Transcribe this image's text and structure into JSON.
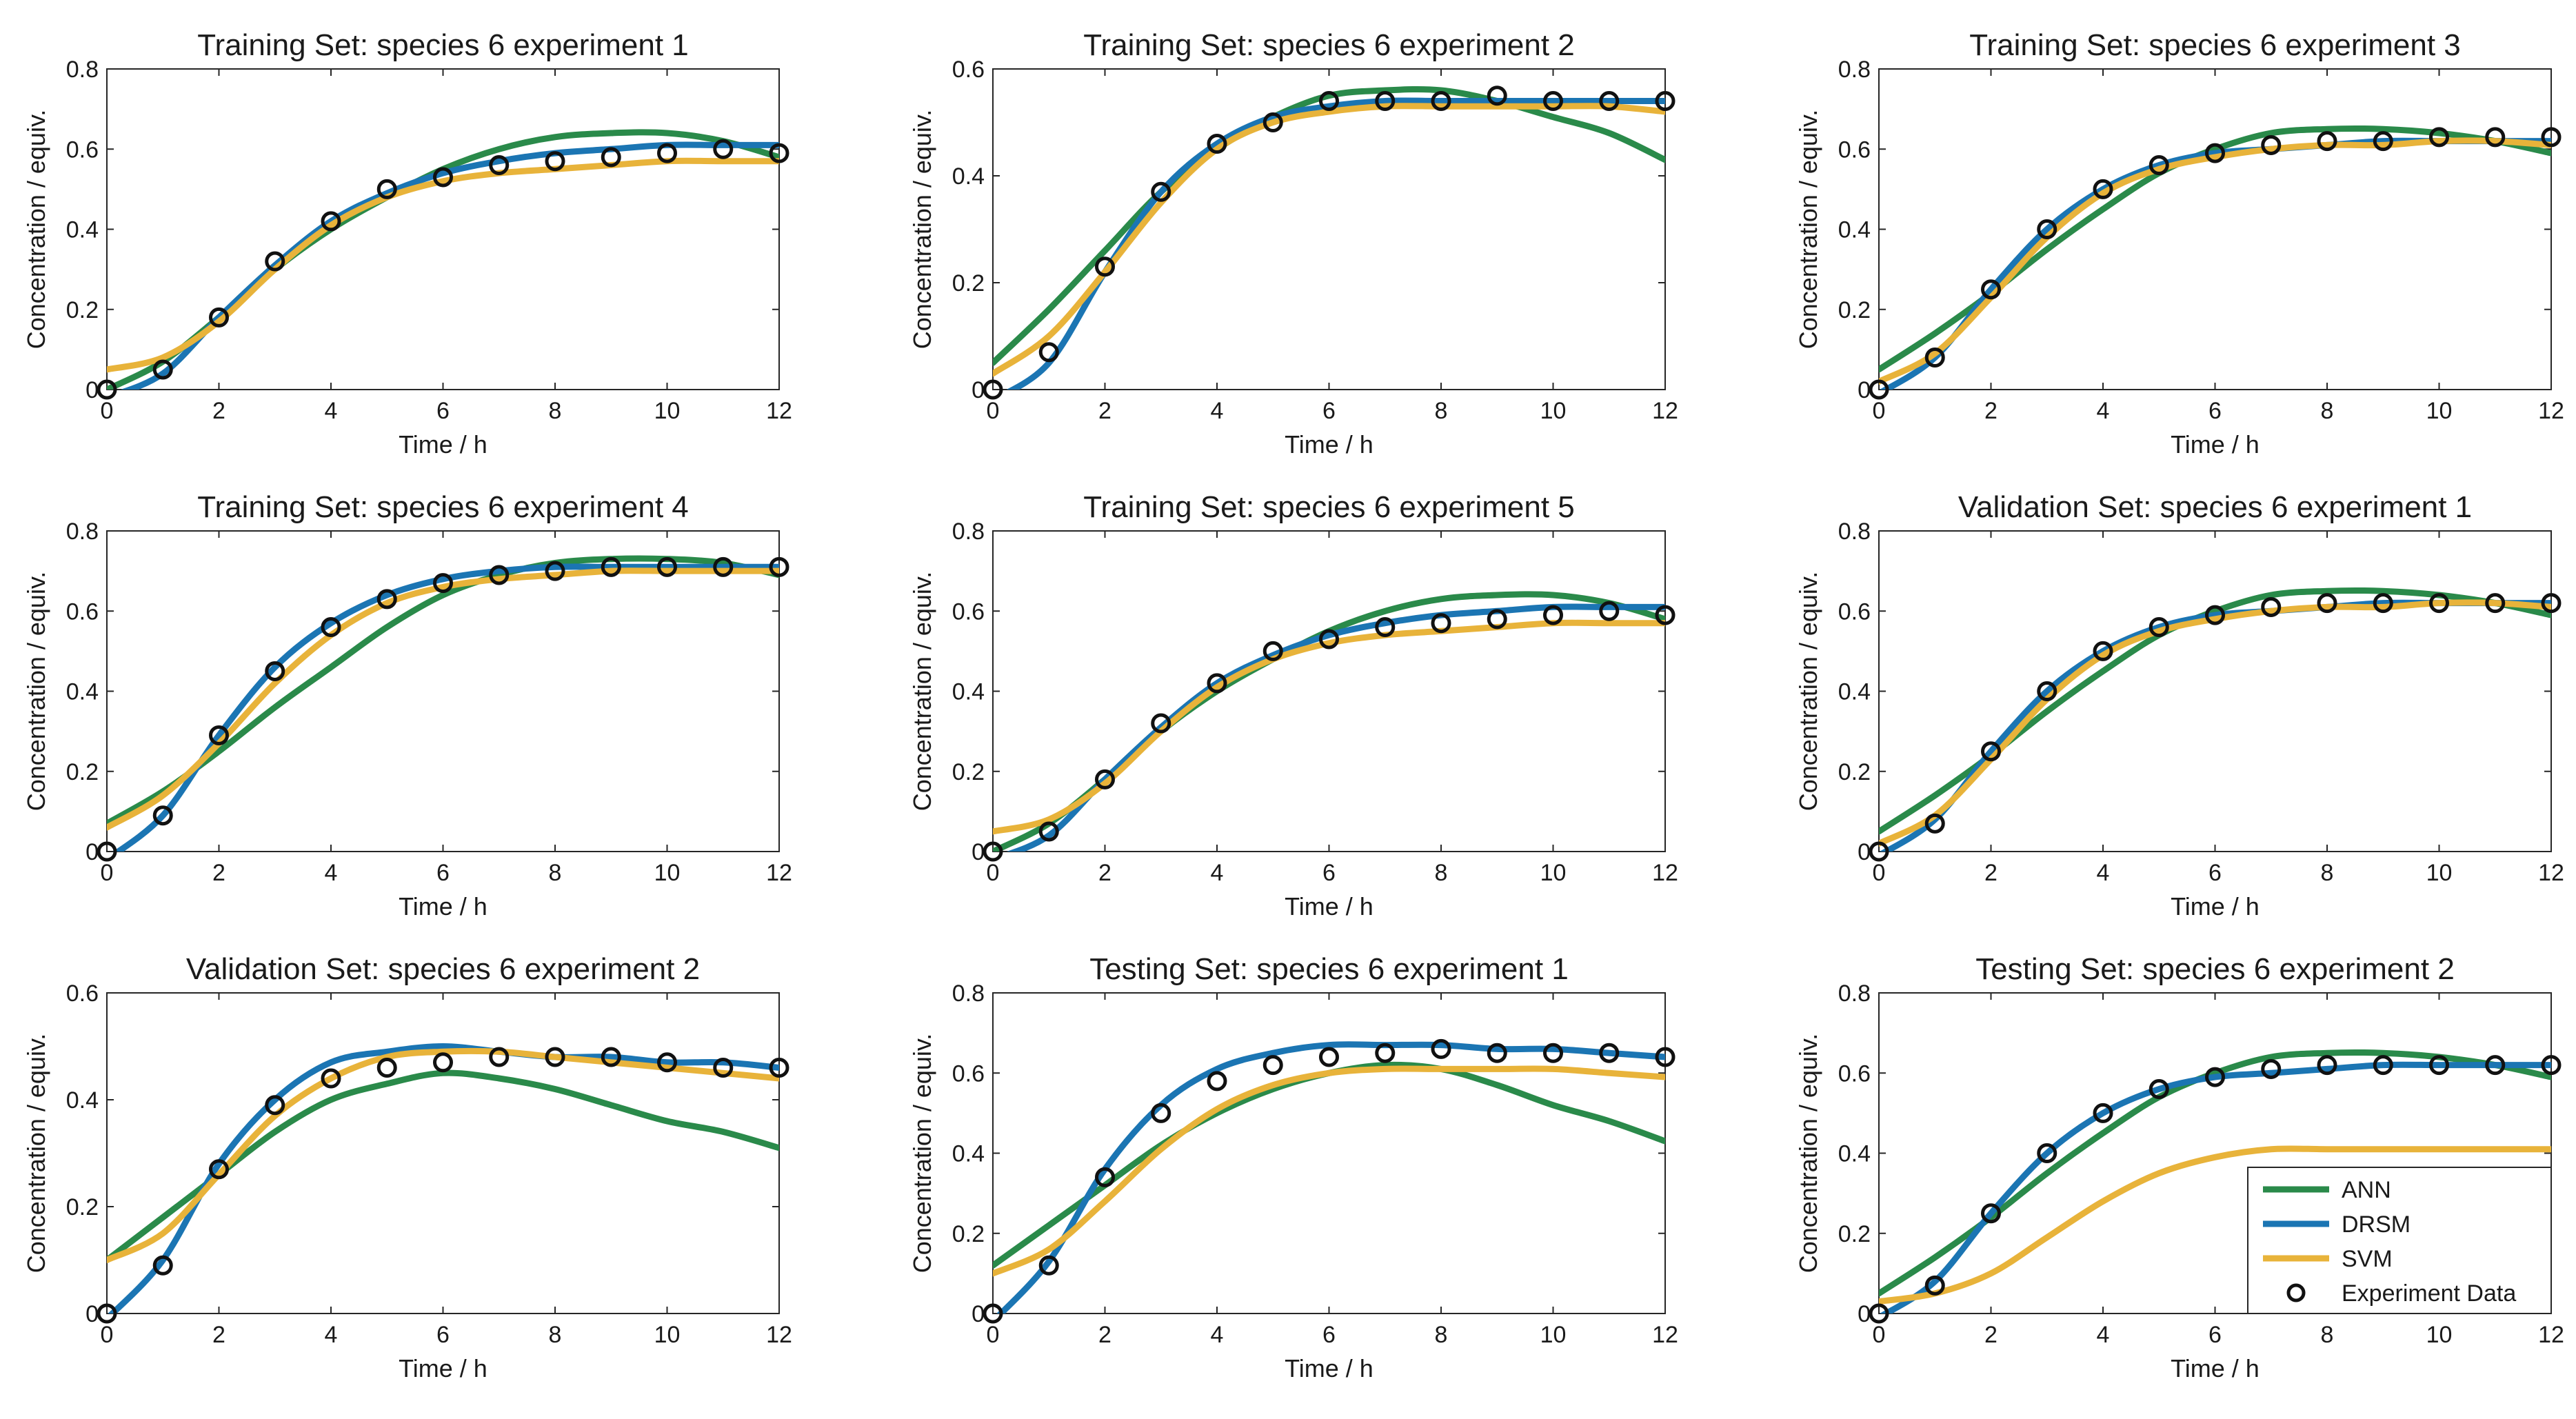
{
  "colors": {
    "ANN": "#2a8a4a",
    "DRSM": "#1b75b3",
    "SVM": "#e8b33a",
    "marker": "#111111"
  },
  "legend": [
    {
      "key": "ANN",
      "label": "ANN"
    },
    {
      "key": "DRSM",
      "label": "DRSM"
    },
    {
      "key": "SVM",
      "label": "SVM"
    },
    {
      "key": "exp",
      "label": "Experiment Data"
    }
  ],
  "chart_data": [
    {
      "type": "line",
      "title": "Training Set: species 6 experiment 1",
      "xlabel": "Time / h",
      "ylabel": "Concentration / equiv.",
      "xlim": [
        0,
        12
      ],
      "ylim": [
        0,
        0.8
      ],
      "xticks": [
        "0",
        "2",
        "4",
        "6",
        "8",
        "10",
        "12"
      ],
      "yticks": [
        "0",
        "0.2",
        "0.4",
        "0.6",
        "0.8"
      ],
      "x": [
        0,
        1,
        2,
        3,
        4,
        5,
        6,
        7,
        8,
        9,
        10,
        11,
        12
      ],
      "series": [
        {
          "name": "ANN",
          "values": [
            0.0,
            0.07,
            0.18,
            0.3,
            0.4,
            0.48,
            0.55,
            0.6,
            0.63,
            0.64,
            0.64,
            0.62,
            0.58
          ]
        },
        {
          "name": "DRSM",
          "values": [
            -0.02,
            0.04,
            0.18,
            0.31,
            0.42,
            0.49,
            0.54,
            0.57,
            0.59,
            0.6,
            0.61,
            0.61,
            0.61
          ]
        },
        {
          "name": "SVM",
          "values": [
            0.05,
            0.08,
            0.17,
            0.3,
            0.41,
            0.48,
            0.52,
            0.54,
            0.55,
            0.56,
            0.57,
            0.57,
            0.57
          ]
        },
        {
          "name": "Experiment Data",
          "marker": "circle",
          "values": [
            0.0,
            0.05,
            0.18,
            0.32,
            0.42,
            0.5,
            0.53,
            0.56,
            0.57,
            0.58,
            0.59,
            0.6,
            0.59
          ]
        }
      ]
    },
    {
      "type": "line",
      "title": "Training Set: species 6 experiment 2",
      "xlabel": "Time / h",
      "ylabel": "Concentration / equiv.",
      "xlim": [
        0,
        12
      ],
      "ylim": [
        0,
        0.6
      ],
      "xticks": [
        "0",
        "2",
        "4",
        "6",
        "8",
        "10",
        "12"
      ],
      "yticks": [
        "0",
        "0.2",
        "0.4",
        "0.6"
      ],
      "x": [
        0,
        1,
        2,
        3,
        4,
        5,
        6,
        7,
        8,
        9,
        10,
        11,
        12
      ],
      "series": [
        {
          "name": "ANN",
          "values": [
            0.05,
            0.15,
            0.26,
            0.37,
            0.45,
            0.51,
            0.55,
            0.56,
            0.56,
            0.54,
            0.51,
            0.48,
            0.43
          ]
        },
        {
          "name": "DRSM",
          "values": [
            -0.02,
            0.05,
            0.22,
            0.37,
            0.46,
            0.51,
            0.53,
            0.54,
            0.54,
            0.54,
            0.54,
            0.54,
            0.54
          ]
        },
        {
          "name": "SVM",
          "values": [
            0.03,
            0.1,
            0.22,
            0.35,
            0.45,
            0.5,
            0.52,
            0.53,
            0.53,
            0.53,
            0.53,
            0.53,
            0.52
          ]
        },
        {
          "name": "Experiment Data",
          "marker": "circle",
          "values": [
            0.0,
            0.07,
            0.23,
            0.37,
            0.46,
            0.5,
            0.54,
            0.54,
            0.54,
            0.55,
            0.54,
            0.54,
            0.54
          ]
        }
      ]
    },
    {
      "type": "line",
      "title": "Training Set: species 6 experiment 3",
      "xlabel": "Time / h",
      "ylabel": "Concentration / equiv.",
      "xlim": [
        0,
        12
      ],
      "ylim": [
        0,
        0.8
      ],
      "xticks": [
        "0",
        "2",
        "4",
        "6",
        "8",
        "10",
        "12"
      ],
      "yticks": [
        "0",
        "0.2",
        "0.4",
        "0.6",
        "0.8"
      ],
      "x": [
        0,
        1,
        2,
        3,
        4,
        5,
        6,
        7,
        8,
        9,
        10,
        11,
        12
      ],
      "series": [
        {
          "name": "ANN",
          "values": [
            0.05,
            0.14,
            0.24,
            0.35,
            0.45,
            0.54,
            0.6,
            0.64,
            0.65,
            0.65,
            0.64,
            0.62,
            0.59
          ]
        },
        {
          "name": "DRSM",
          "values": [
            -0.01,
            0.08,
            0.25,
            0.4,
            0.5,
            0.56,
            0.59,
            0.6,
            0.61,
            0.62,
            0.62,
            0.62,
            0.62
          ]
        },
        {
          "name": "SVM",
          "values": [
            0.02,
            0.09,
            0.23,
            0.38,
            0.49,
            0.55,
            0.58,
            0.6,
            0.61,
            0.61,
            0.62,
            0.62,
            0.61
          ]
        },
        {
          "name": "Experiment Data",
          "marker": "circle",
          "values": [
            0.0,
            0.08,
            0.25,
            0.4,
            0.5,
            0.56,
            0.59,
            0.61,
            0.62,
            0.62,
            0.63,
            0.63,
            0.63
          ]
        }
      ]
    },
    {
      "type": "line",
      "title": "Training Set: species 6 experiment 4",
      "xlabel": "Time / h",
      "ylabel": "Concentration / equiv.",
      "xlim": [
        0,
        12
      ],
      "ylim": [
        0,
        0.8
      ],
      "xticks": [
        "0",
        "2",
        "4",
        "6",
        "8",
        "10",
        "12"
      ],
      "yticks": [
        "0",
        "0.2",
        "0.4",
        "0.6",
        "0.8"
      ],
      "x": [
        0,
        1,
        2,
        3,
        4,
        5,
        6,
        7,
        8,
        9,
        10,
        11,
        12
      ],
      "series": [
        {
          "name": "ANN",
          "values": [
            0.07,
            0.15,
            0.25,
            0.36,
            0.46,
            0.56,
            0.64,
            0.69,
            0.72,
            0.73,
            0.73,
            0.72,
            0.69
          ]
        },
        {
          "name": "DRSM",
          "values": [
            -0.02,
            0.09,
            0.29,
            0.46,
            0.57,
            0.64,
            0.68,
            0.7,
            0.71,
            0.71,
            0.71,
            0.71,
            0.71
          ]
        },
        {
          "name": "SVM",
          "values": [
            0.06,
            0.14,
            0.27,
            0.42,
            0.54,
            0.62,
            0.66,
            0.68,
            0.69,
            0.7,
            0.7,
            0.7,
            0.7
          ]
        },
        {
          "name": "Experiment Data",
          "marker": "circle",
          "values": [
            0.0,
            0.09,
            0.29,
            0.45,
            0.56,
            0.63,
            0.67,
            0.69,
            0.7,
            0.71,
            0.71,
            0.71,
            0.71
          ]
        }
      ]
    },
    {
      "type": "line",
      "title": "Training Set: species 6 experiment 5",
      "xlabel": "Time / h",
      "ylabel": "Concentration / equiv.",
      "xlim": [
        0,
        12
      ],
      "ylim": [
        0,
        0.8
      ],
      "xticks": [
        "0",
        "2",
        "4",
        "6",
        "8",
        "10",
        "12"
      ],
      "yticks": [
        "0",
        "0.2",
        "0.4",
        "0.6",
        "0.8"
      ],
      "x": [
        0,
        1,
        2,
        3,
        4,
        5,
        6,
        7,
        8,
        9,
        10,
        11,
        12
      ],
      "series": [
        {
          "name": "ANN",
          "values": [
            0.0,
            0.07,
            0.18,
            0.3,
            0.4,
            0.48,
            0.55,
            0.6,
            0.63,
            0.64,
            0.64,
            0.62,
            0.58
          ]
        },
        {
          "name": "DRSM",
          "values": [
            -0.02,
            0.04,
            0.18,
            0.31,
            0.42,
            0.49,
            0.54,
            0.57,
            0.59,
            0.6,
            0.61,
            0.61,
            0.61
          ]
        },
        {
          "name": "SVM",
          "values": [
            0.05,
            0.08,
            0.17,
            0.3,
            0.41,
            0.48,
            0.52,
            0.54,
            0.55,
            0.56,
            0.57,
            0.57,
            0.57
          ]
        },
        {
          "name": "Experiment Data",
          "marker": "circle",
          "values": [
            0.0,
            0.05,
            0.18,
            0.32,
            0.42,
            0.5,
            0.53,
            0.56,
            0.57,
            0.58,
            0.59,
            0.6,
            0.59
          ]
        }
      ]
    },
    {
      "type": "line",
      "title": "Validation Set: species 6 experiment 1",
      "xlabel": "Time / h",
      "ylabel": "Concentration / equiv.",
      "xlim": [
        0,
        12
      ],
      "ylim": [
        0,
        0.8
      ],
      "xticks": [
        "0",
        "2",
        "4",
        "6",
        "8",
        "10",
        "12"
      ],
      "yticks": [
        "0",
        "0.2",
        "0.4",
        "0.6",
        "0.8"
      ],
      "x": [
        0,
        1,
        2,
        3,
        4,
        5,
        6,
        7,
        8,
        9,
        10,
        11,
        12
      ],
      "series": [
        {
          "name": "ANN",
          "values": [
            0.05,
            0.14,
            0.24,
            0.35,
            0.45,
            0.54,
            0.6,
            0.64,
            0.65,
            0.65,
            0.64,
            0.62,
            0.59
          ]
        },
        {
          "name": "DRSM",
          "values": [
            -0.01,
            0.08,
            0.25,
            0.4,
            0.5,
            0.56,
            0.59,
            0.6,
            0.61,
            0.62,
            0.62,
            0.62,
            0.62
          ]
        },
        {
          "name": "SVM",
          "values": [
            0.02,
            0.09,
            0.23,
            0.38,
            0.49,
            0.55,
            0.58,
            0.6,
            0.61,
            0.61,
            0.62,
            0.62,
            0.61
          ]
        },
        {
          "name": "Experiment Data",
          "marker": "circle",
          "values": [
            0.0,
            0.07,
            0.25,
            0.4,
            0.5,
            0.56,
            0.59,
            0.61,
            0.62,
            0.62,
            0.62,
            0.62,
            0.62
          ]
        }
      ]
    },
    {
      "type": "line",
      "title": "Validation Set: species 6 experiment 2",
      "xlabel": "Time / h",
      "ylabel": "Concentration / equiv.",
      "xlim": [
        0,
        12
      ],
      "ylim": [
        0,
        0.6
      ],
      "xticks": [
        "0",
        "2",
        "4",
        "6",
        "8",
        "10",
        "12"
      ],
      "yticks": [
        "0",
        "0.2",
        "0.4",
        "0.6"
      ],
      "x": [
        0,
        1,
        2,
        3,
        4,
        5,
        6,
        7,
        8,
        9,
        10,
        11,
        12
      ],
      "series": [
        {
          "name": "ANN",
          "values": [
            0.1,
            0.18,
            0.26,
            0.34,
            0.4,
            0.43,
            0.45,
            0.44,
            0.42,
            0.39,
            0.36,
            0.34,
            0.31
          ]
        },
        {
          "name": "DRSM",
          "values": [
            -0.01,
            0.1,
            0.28,
            0.4,
            0.47,
            0.49,
            0.5,
            0.49,
            0.48,
            0.48,
            0.47,
            0.47,
            0.46
          ]
        },
        {
          "name": "SVM",
          "values": [
            0.1,
            0.15,
            0.26,
            0.37,
            0.44,
            0.48,
            0.49,
            0.49,
            0.48,
            0.47,
            0.46,
            0.45,
            0.44
          ]
        },
        {
          "name": "Experiment Data",
          "marker": "circle",
          "values": [
            0.0,
            0.09,
            0.27,
            0.39,
            0.44,
            0.46,
            0.47,
            0.48,
            0.48,
            0.48,
            0.47,
            0.46,
            0.46
          ]
        }
      ]
    },
    {
      "type": "line",
      "title": "Testing Set: species 6 experiment 1",
      "xlabel": "Time / h",
      "ylabel": "Concentration / equiv.",
      "xlim": [
        0,
        12
      ],
      "ylim": [
        0,
        0.8
      ],
      "xticks": [
        "0",
        "2",
        "4",
        "6",
        "8",
        "10",
        "12"
      ],
      "yticks": [
        "0",
        "0.2",
        "0.4",
        "0.6",
        "0.8"
      ],
      "x": [
        0,
        1,
        2,
        3,
        4,
        5,
        6,
        7,
        8,
        9,
        10,
        11,
        12
      ],
      "series": [
        {
          "name": "ANN",
          "values": [
            0.12,
            0.22,
            0.32,
            0.42,
            0.5,
            0.56,
            0.6,
            0.62,
            0.61,
            0.57,
            0.52,
            0.48,
            0.43
          ]
        },
        {
          "name": "DRSM",
          "values": [
            -0.02,
            0.13,
            0.36,
            0.52,
            0.61,
            0.65,
            0.67,
            0.67,
            0.67,
            0.66,
            0.66,
            0.65,
            0.64
          ]
        },
        {
          "name": "SVM",
          "values": [
            0.1,
            0.16,
            0.28,
            0.41,
            0.51,
            0.57,
            0.6,
            0.61,
            0.61,
            0.61,
            0.61,
            0.6,
            0.59
          ]
        },
        {
          "name": "Experiment Data",
          "marker": "circle",
          "values": [
            0.0,
            0.12,
            0.34,
            0.5,
            0.58,
            0.62,
            0.64,
            0.65,
            0.66,
            0.65,
            0.65,
            0.65,
            0.64
          ]
        }
      ]
    },
    {
      "type": "line",
      "title": "Testing Set: species 6 experiment 2",
      "xlabel": "Time / h",
      "ylabel": "Concentration / equiv.",
      "xlim": [
        0,
        12
      ],
      "ylim": [
        0,
        0.8
      ],
      "xticks": [
        "0",
        "2",
        "4",
        "6",
        "8",
        "10",
        "12"
      ],
      "yticks": [
        "0",
        "0.2",
        "0.4",
        "0.6",
        "0.8"
      ],
      "x": [
        0,
        1,
        2,
        3,
        4,
        5,
        6,
        7,
        8,
        9,
        10,
        11,
        12
      ],
      "legend_position": "lower-right",
      "series": [
        {
          "name": "ANN",
          "values": [
            0.05,
            0.14,
            0.24,
            0.35,
            0.45,
            0.54,
            0.6,
            0.64,
            0.65,
            0.65,
            0.64,
            0.62,
            0.59
          ]
        },
        {
          "name": "DRSM",
          "values": [
            -0.01,
            0.08,
            0.25,
            0.4,
            0.5,
            0.56,
            0.59,
            0.6,
            0.61,
            0.62,
            0.62,
            0.62,
            0.62
          ]
        },
        {
          "name": "SVM",
          "values": [
            0.03,
            0.05,
            0.1,
            0.19,
            0.28,
            0.35,
            0.39,
            0.41,
            0.41,
            0.41,
            0.41,
            0.41,
            0.41
          ]
        },
        {
          "name": "Experiment Data",
          "marker": "circle",
          "values": [
            0.0,
            0.07,
            0.25,
            0.4,
            0.5,
            0.56,
            0.59,
            0.61,
            0.62,
            0.62,
            0.62,
            0.62,
            0.62
          ]
        }
      ]
    }
  ]
}
